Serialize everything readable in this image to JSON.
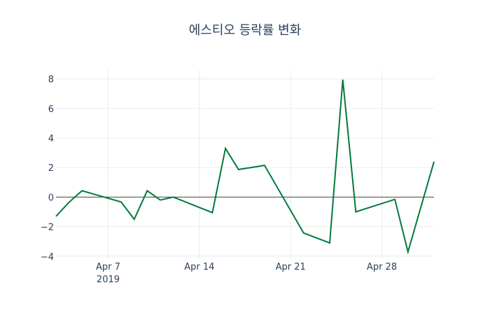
{
  "chart_data": {
    "type": "line",
    "title": "에스티오 등락률 변화",
    "xlabel": "",
    "ylabel": "",
    "x": [
      "2019-04-03",
      "2019-04-04",
      "2019-04-05",
      "2019-04-08",
      "2019-04-09",
      "2019-04-10",
      "2019-04-11",
      "2019-04-12",
      "2019-04-15",
      "2019-04-16",
      "2019-04-17",
      "2019-04-19",
      "2019-04-22",
      "2019-04-24",
      "2019-04-25",
      "2019-04-26",
      "2019-04-29",
      "2019-04-30",
      "2019-05-02"
    ],
    "series": [
      {
        "name": "등락률",
        "color": "#007a3d",
        "values": [
          -1.3,
          -0.35,
          0.43,
          -0.33,
          -1.5,
          0.43,
          -0.2,
          0.0,
          -1.05,
          3.3,
          1.87,
          2.15,
          -2.43,
          -3.1,
          7.95,
          -1.0,
          -0.15,
          -3.7,
          2.4
        ]
      }
    ],
    "xlim": [
      "2019-04-03",
      "2019-05-02"
    ],
    "ylim": [
      -4.2,
      8.6
    ],
    "yticks": [
      -4,
      -2,
      0,
      2,
      4,
      6,
      8
    ],
    "ytick_labels": [
      "−4",
      "−2",
      "0",
      "2",
      "4",
      "6",
      "8"
    ],
    "xticks": [
      "2019-04-07",
      "2019-04-14",
      "2019-04-21",
      "2019-04-28"
    ],
    "xtick_labels": [
      "Apr 7",
      "Apr 14",
      "Apr 21",
      "Apr 28"
    ],
    "xtick_sublabel": "2019",
    "grid": true,
    "legend": "none"
  }
}
